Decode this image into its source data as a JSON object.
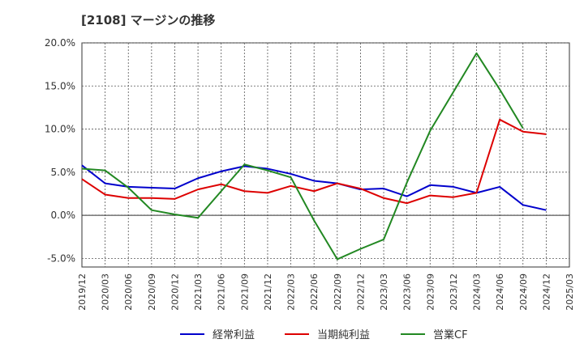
{
  "chart_data": {
    "type": "line",
    "title": "[2108]  マージンの推移",
    "xlabel": "",
    "ylabel": "",
    "x": [
      "2019/12",
      "2020/03",
      "2020/06",
      "2020/09",
      "2020/12",
      "2021/03",
      "2021/06",
      "2021/09",
      "2021/12",
      "2022/03",
      "2022/06",
      "2022/09",
      "2022/12",
      "2023/03",
      "2023/06",
      "2023/09",
      "2023/12",
      "2024/03",
      "2024/06",
      "2024/09",
      "2024/12",
      "2025/03"
    ],
    "ylim": [
      -6,
      20
    ],
    "yticks": [
      -5,
      0,
      5,
      10,
      15,
      20
    ],
    "ytick_labels": [
      "-5.0%",
      "0.0%",
      "5.0%",
      "10.0%",
      "15.0%",
      "20.0%"
    ],
    "grid": true,
    "legend_position": "bottom",
    "series": [
      {
        "name": "経常利益",
        "color": "#0000cc",
        "values": [
          5.8,
          3.7,
          3.3,
          3.2,
          3.1,
          4.3,
          5.1,
          5.7,
          5.4,
          4.8,
          4.0,
          3.7,
          3.0,
          3.1,
          2.2,
          3.5,
          3.3,
          2.6,
          3.3,
          1.2,
          0.6,
          null
        ]
      },
      {
        "name": "当期純利益",
        "color": "#dd0000",
        "values": [
          4.2,
          2.4,
          2.0,
          2.0,
          1.9,
          3.0,
          3.6,
          2.8,
          2.6,
          3.4,
          2.8,
          3.7,
          3.1,
          2.0,
          1.4,
          2.3,
          2.1,
          2.6,
          11.1,
          9.7,
          9.4,
          null
        ]
      },
      {
        "name": "営業CF",
        "color": "#228822",
        "values": [
          5.4,
          5.2,
          3.2,
          0.6,
          0.1,
          -0.3,
          2.8,
          5.9,
          5.2,
          4.4,
          -0.6,
          -5.1,
          -3.9,
          -2.8,
          3.8,
          9.8,
          14.3,
          18.8,
          14.6,
          10.1,
          null,
          null
        ]
      }
    ]
  }
}
